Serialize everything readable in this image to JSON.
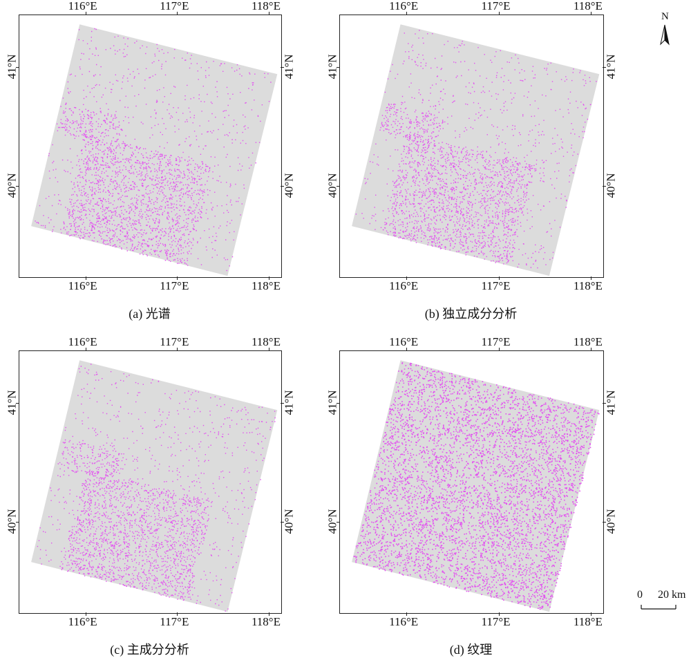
{
  "panels": [
    {
      "id": "a",
      "caption": "(a) 光谱",
      "density": "low"
    },
    {
      "id": "b",
      "caption": "(b) 独立成分分析",
      "density": "low"
    },
    {
      "id": "c",
      "caption": "(c) 主成分分析",
      "density": "low"
    },
    {
      "id": "d",
      "caption": "(d) 纹理",
      "density": "high"
    }
  ],
  "lon_labels": [
    "116°E",
    "117°E",
    "118°E"
  ],
  "lat_labels": [
    "41°N",
    "40°N"
  ],
  "north_arrow": {
    "label": "N",
    "icon": "north-arrow-icon"
  },
  "scale_bar": {
    "start": "0",
    "end": "20 km"
  },
  "colors": {
    "background_scene": "#dcdcdc",
    "classified": "#e34ff0",
    "frame": "#222222"
  }
}
